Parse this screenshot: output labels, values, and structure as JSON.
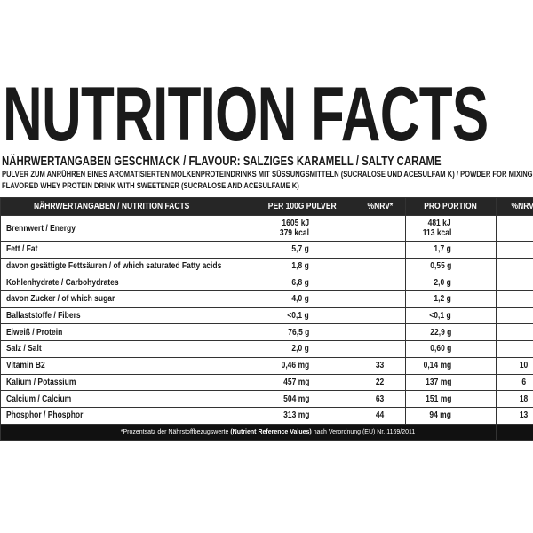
{
  "header": {
    "title": "NUTRITION FACTS",
    "flavour": "NÄHRWERTANGABEN GESCHMACK / FLAVOUR: SALZIGES KARAMELL / SALTY CARAME",
    "description": [
      "PULVER ZUM ANRÜHREN EINES AROMATISIERTEN MOLKENPROTEINDRINKS MIT SÜSSUNGSMITTELN (SUCRALOSE UND ACESULFAM K) / POWDER FOR MIXING",
      "FLAVORED WHEY PROTEIN DRINK WITH SWEETENER (SUCRALOSE AND ACESULFAME K)"
    ]
  },
  "table": {
    "columns": [
      "NÄHRWERTANGABEN / NUTRITION FACTS",
      "PER 100G PULVER",
      "%NRV*",
      "PRO PORTION",
      "%NRV*"
    ],
    "rows": [
      [
        "Brennwert / Energy",
        [
          "1605 kJ",
          "379 kcal"
        ],
        null,
        [
          "481 kJ",
          "113 kcal"
        ],
        null
      ],
      [
        "Fett / Fat",
        [
          "5,7 g"
        ],
        null,
        [
          "1,7 g"
        ],
        null
      ],
      [
        "davon gesättigte Fettsäuren / of which saturated Fatty acids",
        [
          "1,8 g"
        ],
        null,
        [
          "0,55 g"
        ],
        null
      ],
      [
        "Kohlenhydrate / Carbohydrates",
        [
          "6,8 g"
        ],
        null,
        [
          "2,0 g"
        ],
        null
      ],
      [
        "davon Zucker / of which sugar",
        [
          "4,0 g"
        ],
        null,
        [
          "1,2 g"
        ],
        null
      ],
      [
        "Ballaststoffe / Fibers",
        [
          "<0,1 g"
        ],
        null,
        [
          "<0,1 g"
        ],
        null
      ],
      [
        "Eiweiß / Protein",
        [
          "76,5 g"
        ],
        null,
        [
          "22,9 g"
        ],
        null
      ],
      [
        "Salz / Salt",
        [
          "2,0 g"
        ],
        null,
        [
          "0,60 g"
        ],
        null
      ],
      [
        "Vitamin B2",
        [
          "0,46 mg"
        ],
        "33",
        [
          "0,14 mg"
        ],
        "10"
      ],
      [
        "Kalium / Potassium",
        [
          "457 mg"
        ],
        "22",
        [
          "137 mg"
        ],
        "6"
      ],
      [
        "Calcium / Calcium",
        [
          "504 mg"
        ],
        "63",
        [
          "151 mg"
        ],
        "18"
      ],
      [
        "Phosphor / Phosphor",
        [
          "313 mg"
        ],
        "44",
        [
          "94 mg"
        ],
        "13"
      ]
    ],
    "footnote": [
      "*Prozentsatz der Nährstoffbezugswerte ",
      "(Nutrient Reference Values)",
      " nach Verordnung (EU) Nr. 1169/2011"
    ]
  }
}
